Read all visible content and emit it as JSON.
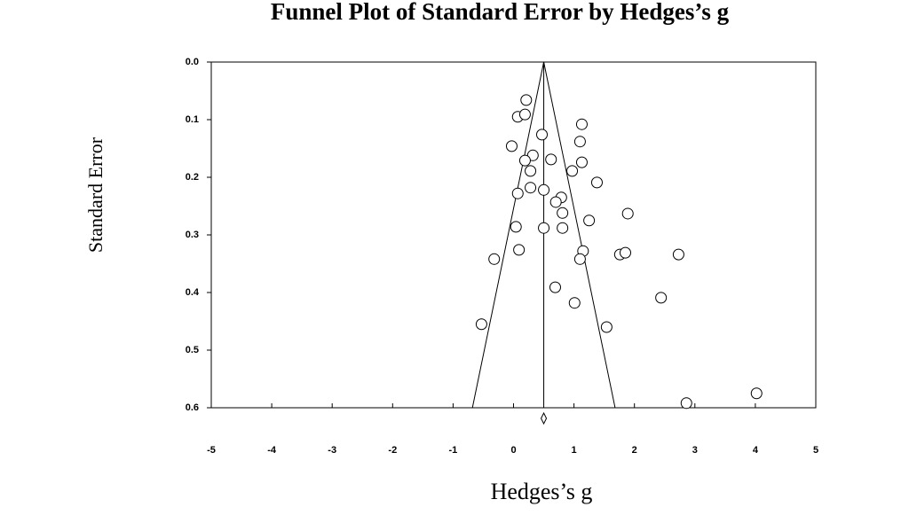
{
  "chart_data": {
    "type": "scatter",
    "title": "Funnel Plot of Standard Error by Hedges’s g",
    "x_label": "Hedges’s g",
    "y_label": "Standard Error",
    "x": [
      0.21,
      0.07,
      0.19,
      1.13,
      0.47,
      1.1,
      -0.03,
      0.32,
      0.19,
      0.62,
      1.13,
      0.28,
      0.97,
      1.38,
      0.07,
      0.28,
      0.5,
      0.79,
      0.7,
      0.81,
      1.89,
      1.25,
      0.04,
      0.5,
      0.81,
      -0.32,
      0.09,
      1.15,
      1.1,
      1.76,
      1.85,
      2.73,
      0.69,
      1.01,
      2.44,
      -0.53,
      1.54,
      4.02,
      2.86
    ],
    "y": [
      0.066,
      0.095,
      0.091,
      0.108,
      0.126,
      0.138,
      0.146,
      0.162,
      0.171,
      0.169,
      0.174,
      0.189,
      0.189,
      0.209,
      0.228,
      0.218,
      0.222,
      0.235,
      0.243,
      0.262,
      0.263,
      0.275,
      0.286,
      0.288,
      0.288,
      0.342,
      0.326,
      0.328,
      0.342,
      0.334,
      0.331,
      0.334,
      0.391,
      0.418,
      0.409,
      0.455,
      0.46,
      0.575,
      0.592
    ],
    "pooled_estimate": 0.5,
    "funnel": {
      "x": [
        -0.68,
        0.5,
        1.68
      ],
      "y": [
        0.6,
        0,
        0.6
      ]
    },
    "xlim": [
      -5,
      5
    ],
    "xticks": [
      -5,
      -4,
      -3,
      -2,
      -1,
      0,
      1,
      2,
      3,
      4,
      5
    ],
    "ylim": [
      0,
      0.6
    ],
    "y_reversed": true,
    "yticks": [
      {
        "value": 0,
        "label": "0.0"
      },
      0.1,
      0.2,
      0.3,
      0.4,
      0.5,
      0.6
    ],
    "color": "#000000"
  }
}
